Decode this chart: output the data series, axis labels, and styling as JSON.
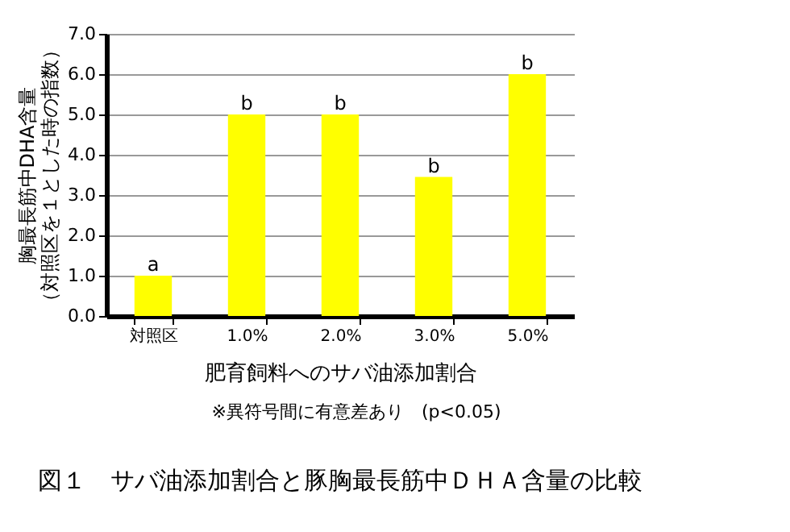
{
  "chart_data": {
    "type": "bar",
    "title": "図１　サバ油添加割合と豚胸最長筋中ＤＨＡ含量の比較",
    "xlabel": "肥育飼料へのサバ油添加割合",
    "ylabel": "胸最長筋中DHA含量（対照区を１とした時の指数）",
    "categories": [
      "対照区",
      "1.0%",
      "2.0%",
      "3.0%",
      "5.0%"
    ],
    "values": [
      1.0,
      5.0,
      5.0,
      3.45,
      6.0
    ],
    "value_labels": [
      "a",
      "b",
      "b",
      "b",
      "b"
    ],
    "color": "#ffff00",
    "ylim": [
      0,
      7
    ],
    "yticks": [
      {
        "value": 0,
        "label": "0.0"
      },
      {
        "value": 1,
        "label": "1.0"
      },
      {
        "value": 2,
        "label": "2.0"
      },
      {
        "value": 3,
        "label": "3.0"
      },
      {
        "value": 4,
        "label": "4.0"
      },
      {
        "value": 5,
        "label": "5.0"
      },
      {
        "value": 6,
        "label": "6.0"
      },
      {
        "value": 7,
        "label": "7.0"
      }
    ],
    "grid": "y",
    "annotations": [
      "※異符号間に有意差あり　(p<0.05)"
    ]
  }
}
